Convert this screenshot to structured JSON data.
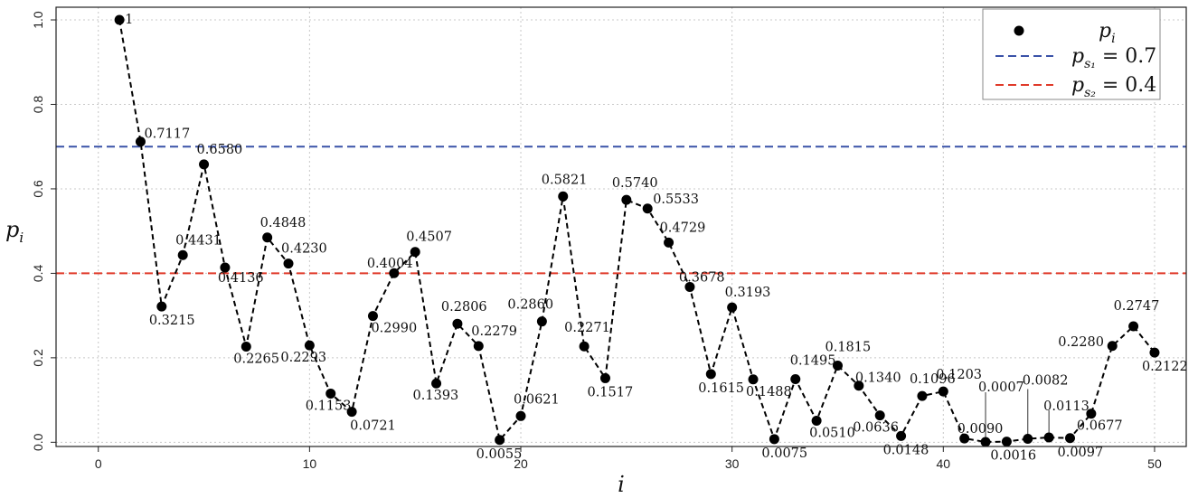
{
  "chart_data": {
    "type": "line",
    "xlabel": "i",
    "ylabel": "p_i",
    "xlim": [
      -2,
      51.5
    ],
    "ylim": [
      -0.01,
      1.03
    ],
    "xticks": [
      0,
      10,
      20,
      30,
      40,
      50
    ],
    "yticks": [
      0.0,
      0.2,
      0.4,
      0.6,
      0.8,
      1.0
    ],
    "xtick_labels": [
      "0",
      "10",
      "20",
      "30",
      "40",
      "50"
    ],
    "ytick_labels": [
      "0.0",
      "0.2",
      "0.4",
      "0.6",
      "0.8",
      "1.0"
    ],
    "grid": true,
    "legend_position": "top-right",
    "series": [
      {
        "name": "p_i",
        "style": "dashed line with filled circle markers",
        "color": "#000000",
        "x": [
          1,
          2,
          3,
          4,
          5,
          6,
          7,
          8,
          9,
          10,
          11,
          12,
          13,
          14,
          15,
          16,
          17,
          18,
          19,
          20,
          21,
          22,
          23,
          24,
          25,
          26,
          27,
          28,
          29,
          30,
          31,
          32,
          33,
          34,
          35,
          36,
          37,
          38,
          39,
          40,
          41,
          42,
          43,
          44,
          45,
          46,
          47,
          48,
          49,
          50
        ],
        "y": [
          1,
          0.7117,
          0.3215,
          0.4431,
          0.658,
          0.4136,
          0.2265,
          0.4848,
          0.423,
          0.2293,
          0.1153,
          0.0721,
          0.299,
          0.4004,
          0.4507,
          0.1393,
          0.2806,
          0.2279,
          0.0055,
          0.0621,
          0.286,
          0.5821,
          0.2271,
          0.1517,
          0.574,
          0.5533,
          0.4729,
          0.3678,
          0.1615,
          0.3193,
          0.1488,
          0.0075,
          0.1495,
          0.051,
          0.1815,
          0.134,
          0.0636,
          0.0148,
          0.1096,
          0.1203,
          0.009,
          0.0007,
          0.0016,
          0.0082,
          0.0113,
          0.0097,
          0.0677,
          0.228,
          0.2747,
          0.2122
        ],
        "labels": [
          "1",
          "0.7117",
          "0.3215",
          "0.4431",
          "0.6580",
          "0.4136",
          "0.2265",
          "0.4848",
          "0.4230",
          "0.2293",
          "0.1153",
          "0.0721",
          "0.2990",
          "0.4004",
          "0.4507",
          "0.1393",
          "0.2806",
          "0.2279",
          "0.0055",
          "0.0621",
          "0.2860",
          "0.5821",
          "0.2271",
          "0.1517",
          "0.5740",
          "0.5533",
          "0.4729",
          "0.3678",
          "0.1615",
          "0.3193",
          "0.1488",
          "0.0075",
          "0.1495",
          "0.0510",
          "0.1815",
          "0.1340",
          "0.0636",
          "0.0148",
          "0.1096",
          "0.1203",
          "0.0090",
          "0.0007",
          "0.0016",
          "0.0082",
          "0.0113",
          "0.0097",
          "0.0677",
          "0.2280",
          "0.2747",
          "0.2122"
        ]
      }
    ],
    "hlines": [
      {
        "name": "p_s1 = 0.7",
        "y": 0.7,
        "color": "#3a52a8",
        "style": "dashed"
      },
      {
        "name": "p_s2 = 0.4",
        "y": 0.4,
        "color": "#e03a2a",
        "style": "dashed"
      }
    ],
    "legend": {
      "entries": [
        {
          "symbol": "p",
          "subscript": "i",
          "rest": ""
        },
        {
          "symbol": "p",
          "subscript": "s₁",
          "rest": " = 0.7"
        },
        {
          "symbol": "p",
          "subscript": "s₂",
          "rest": " = 0.4"
        }
      ]
    }
  }
}
